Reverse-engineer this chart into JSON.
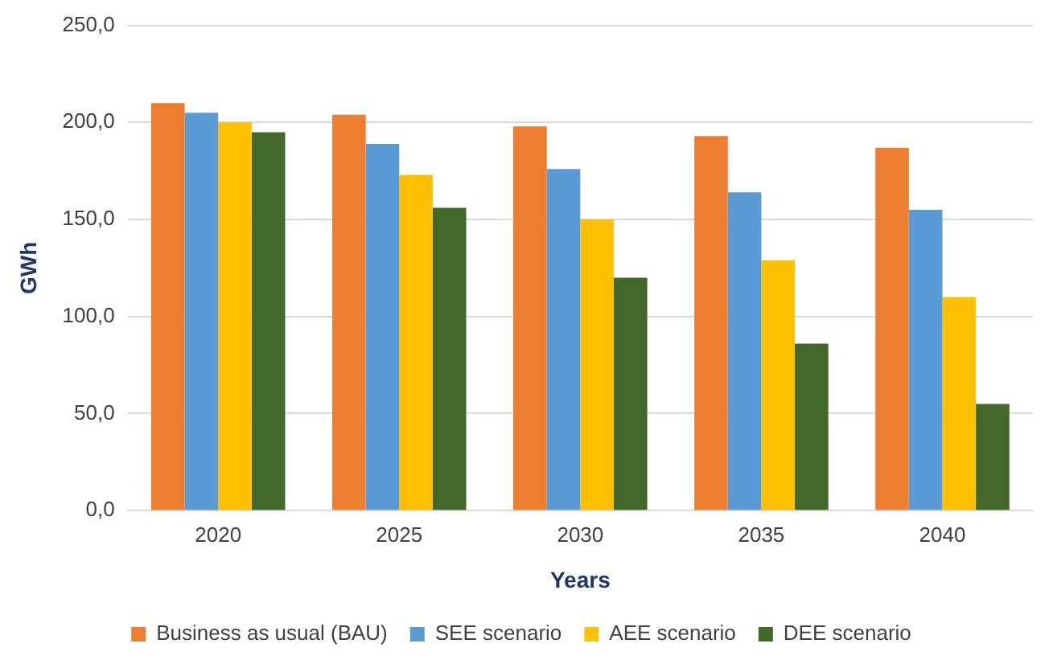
{
  "chart_data": {
    "type": "bar",
    "xlabel": "Years",
    "ylabel": "GWh",
    "categories": [
      "2020",
      "2025",
      "2030",
      "2035",
      "2040"
    ],
    "series": [
      {
        "name": "Business as usual (BAU)",
        "color": "#ed7d31",
        "values": [
          210,
          204,
          198,
          193,
          187
        ]
      },
      {
        "name": "SEE scenario",
        "color": "#5b9bd5",
        "values": [
          205,
          189,
          176,
          164,
          155
        ]
      },
      {
        "name": "AEE scenario",
        "color": "#ffc000",
        "values": [
          200,
          173,
          150,
          129,
          110
        ]
      },
      {
        "name": "DEE scenario",
        "color": "#43682b",
        "values": [
          195,
          156,
          120,
          86,
          55
        ]
      }
    ],
    "ylim": [
      0,
      250
    ],
    "yticks": [
      {
        "value": 0,
        "label": "0,0"
      },
      {
        "value": 50,
        "label": "50,0"
      },
      {
        "value": 100,
        "label": "100,0"
      },
      {
        "value": 150,
        "label": "150,0"
      },
      {
        "value": 200,
        "label": "200,0"
      },
      {
        "value": 250,
        "label": "250,0"
      }
    ],
    "grid": "y",
    "legend": "bottom"
  }
}
